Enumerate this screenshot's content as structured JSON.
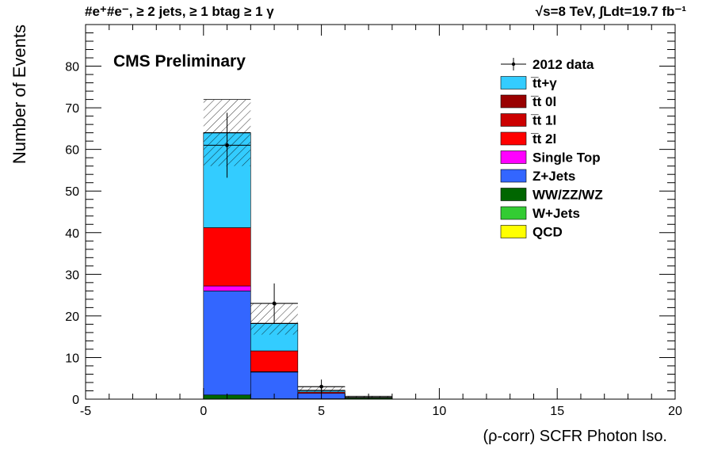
{
  "chart_data": {
    "type": "bar",
    "stacked": true,
    "title_left": "#e⁺#e⁻, ≥ 2 jets, ≥ 1 btag ≥ 1 γ",
    "title_right": "√s=8 TeV,   ∫Ldt=19.7 fb⁻¹",
    "label": "CMS Preliminary",
    "xlabel": "(ρ-corr) SCFR Photon Iso.",
    "ylabel": "Number of Events",
    "xlim": [
      -5,
      20
    ],
    "ylim": [
      0,
      90
    ],
    "x_ticks": [
      "-5",
      "0",
      "5",
      "10",
      "15",
      "20"
    ],
    "y_ticks": [
      "0",
      "10",
      "20",
      "30",
      "40",
      "50",
      "60",
      "70",
      "80"
    ],
    "bin_edges": [
      0,
      2,
      4,
      6,
      8
    ],
    "series": [
      {
        "name": "QCD",
        "color": "#ffff00",
        "values": [
          0,
          0,
          0,
          0
        ]
      },
      {
        "name": "W+Jets",
        "color": "#33cc33",
        "values": [
          0,
          0,
          0,
          0
        ]
      },
      {
        "name": "WW/ZZ/WZ",
        "color": "#006600",
        "values": [
          1.0,
          0.1,
          0.1,
          0.3
        ]
      },
      {
        "name": "Z+Jets",
        "color": "#3366ff",
        "values": [
          25.0,
          6.4,
          1.3,
          0
        ]
      },
      {
        "name": "Single Top",
        "color": "#ff00ff",
        "values": [
          1.2,
          0.1,
          0,
          0
        ]
      },
      {
        "name": "t̅t 2l",
        "color": "#ff0000",
        "values": [
          14.0,
          5.0,
          0.3,
          0
        ]
      },
      {
        "name": "t̅t 1l",
        "color": "#cc0000",
        "values": [
          0,
          0,
          0,
          0
        ]
      },
      {
        "name": "t̅t 0l",
        "color": "#990000",
        "values": [
          0,
          0,
          0,
          0
        ]
      },
      {
        "name": "t̅t+γ",
        "color": "#33ccff",
        "values": [
          22.8,
          6.6,
          0.4,
          0.1
        ]
      }
    ],
    "uncertainty_band": {
      "low": [
        56,
        15.5,
        1.8,
        0.3
      ],
      "high": [
        72,
        23,
        3.0,
        0.7
      ]
    },
    "data": {
      "name": "2012 data",
      "x": [
        1,
        3,
        5
      ],
      "y": [
        61,
        23,
        3
      ],
      "err_low": [
        7.8,
        4.8,
        1.7
      ],
      "err_high": [
        7.8,
        4.8,
        1.7
      ]
    },
    "legend_position": "top-right",
    "legend_order": [
      "2012 data",
      "t̅t+γ",
      "t̅t 0l",
      "t̅t 1l",
      "t̅t 2l",
      "Single Top",
      "Z+Jets",
      "WW/ZZ/WZ",
      "W+Jets",
      "QCD"
    ],
    "grid": false
  }
}
